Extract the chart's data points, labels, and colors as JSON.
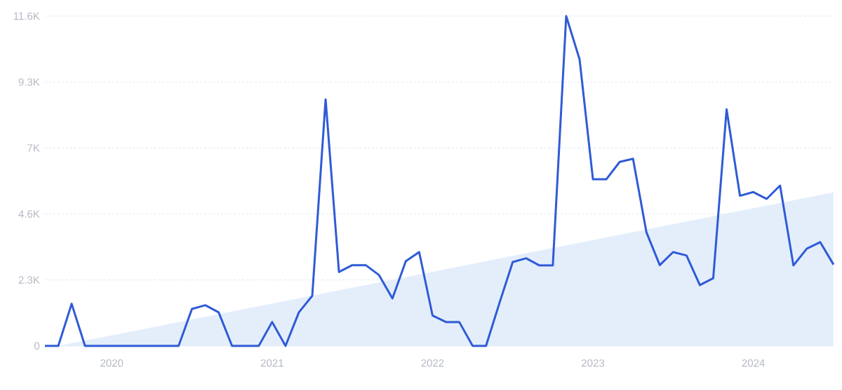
{
  "chart_data": {
    "type": "line",
    "x": [
      "2019-08",
      "2019-09",
      "2019-10",
      "2019-11",
      "2019-12",
      "2020-01",
      "2020-02",
      "2020-03",
      "2020-04",
      "2020-05",
      "2020-06",
      "2020-07",
      "2020-08",
      "2020-09",
      "2020-10",
      "2020-11",
      "2020-12",
      "2021-01",
      "2021-02",
      "2021-03",
      "2021-04",
      "2021-05",
      "2021-06",
      "2021-07",
      "2021-08",
      "2021-09",
      "2021-10",
      "2021-11",
      "2021-12",
      "2022-01",
      "2022-02",
      "2022-03",
      "2022-04",
      "2022-05",
      "2022-06",
      "2022-07",
      "2022-08",
      "2022-09",
      "2022-10",
      "2022-11",
      "2022-12",
      "2023-01",
      "2023-02",
      "2023-03",
      "2023-04",
      "2023-05",
      "2023-06",
      "2023-07",
      "2023-08",
      "2023-09",
      "2023-10",
      "2023-11",
      "2023-12",
      "2024-01",
      "2024-02",
      "2024-03",
      "2024-04",
      "2024-05",
      "2024-06",
      "2024-07"
    ],
    "series": [
      {
        "type": "area",
        "color": "#e4eefb",
        "x": [
          "2019-09",
          "2024-07"
        ],
        "values": [
          0,
          5400
        ]
      },
      {
        "color": "#2f5bd6",
        "values": [
          0,
          0,
          1480,
          0,
          0,
          0,
          0,
          0,
          0,
          0,
          0,
          1300,
          1430,
          1180,
          0,
          0,
          0,
          840,
          0,
          1180,
          1760,
          8670,
          2600,
          2840,
          2840,
          2490,
          1670,
          2980,
          3300,
          1070,
          840,
          840,
          0,
          0,
          1500,
          2950,
          3080,
          2830,
          2830,
          11600,
          10080,
          5860,
          5860,
          6470,
          6580,
          4000,
          2840,
          3300,
          3180,
          2140,
          2380,
          8320,
          5280,
          5410,
          5170,
          5640,
          2830,
          3420,
          3650,
          2860
        ]
      }
    ],
    "xlim": [
      "2019-08",
      "2024-07"
    ],
    "xticks": [
      {
        "value": "2020-01",
        "label": "2020"
      },
      {
        "value": "2021-01",
        "label": "2021"
      },
      {
        "value": "2022-01",
        "label": "2022"
      },
      {
        "value": "2023-01",
        "label": "2023"
      },
      {
        "value": "2024-01",
        "label": "2024"
      }
    ],
    "ylim": [
      0,
      11600
    ],
    "yticks": [
      {
        "value": 0,
        "label": "0"
      },
      {
        "value": 2320,
        "label": "2.3K"
      },
      {
        "value": 4640,
        "label": "4.6K"
      },
      {
        "value": 6960,
        "label": "7K"
      },
      {
        "value": 9280,
        "label": "9.3K"
      },
      {
        "value": 11600,
        "label": "11.6K"
      }
    ],
    "grid": "y",
    "marker": "none",
    "line_style": "solid"
  }
}
